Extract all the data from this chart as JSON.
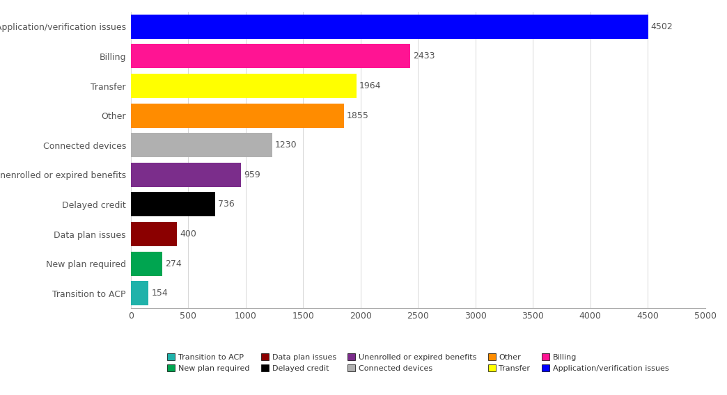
{
  "categories": [
    "Application/verification issues",
    "Billing",
    "Transfer",
    "Other",
    "Connected devices",
    "Unenrolled or expired benefits",
    "Delayed credit",
    "Data plan issues",
    "New plan required",
    "Transition to ACP"
  ],
  "values": [
    4502,
    2433,
    1964,
    1855,
    1230,
    959,
    736,
    400,
    274,
    154
  ],
  "colors": [
    "#0000ff",
    "#ff1493",
    "#ffff00",
    "#ff8c00",
    "#b0b0b0",
    "#7b2d8b",
    "#000000",
    "#8b0000",
    "#00a550",
    "#20b2aa"
  ],
  "xlim": [
    0,
    5000
  ],
  "xticks": [
    0,
    500,
    1000,
    1500,
    2000,
    2500,
    3000,
    3500,
    4000,
    4500,
    5000
  ],
  "legend_order": [
    "Transition to ACP",
    "New plan required",
    "Data plan issues",
    "Delayed credit",
    "Unenrolled or expired benefits",
    "Connected devices",
    "Other",
    "Transfer",
    "Billing",
    "Application/verification issues"
  ],
  "legend_colors": {
    "Transition to ACP": "#20b2aa",
    "New plan required": "#00a550",
    "Data plan issues": "#8b0000",
    "Delayed credit": "#000000",
    "Unenrolled or expired benefits": "#7b2d8b",
    "Connected devices": "#b0b0b0",
    "Other": "#ff8c00",
    "Transfer": "#ffff00",
    "Billing": "#ff1493",
    "Application/verification issues": "#0000ff"
  },
  "background_color": "#ffffff",
  "label_fontsize": 9,
  "tick_fontsize": 9,
  "value_label_fontsize": 9,
  "bar_height": 0.82
}
